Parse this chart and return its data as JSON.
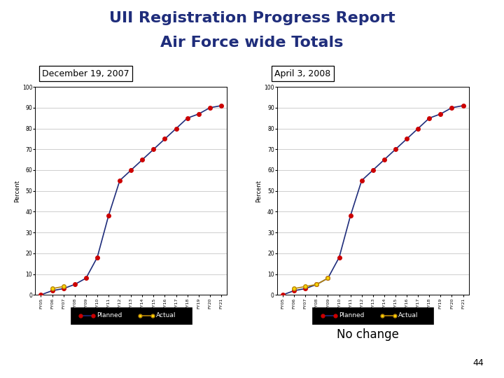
{
  "title_line1": "UII Registration Progress Report",
  "title_line2": "Air Force wide Totals",
  "title_color": "#1F2D7B",
  "title_fontsize": 16,
  "subtitle_left": "December 19, 2007",
  "subtitle_right": "April 3, 2008",
  "subtitle_fontsize": 9,
  "note": "No change",
  "note_fontsize": 12,
  "page_number": "44",
  "background_color": "#ffffff",
  "bar_color": "#1F2D7B",
  "categories": [
    "FY05",
    "FY06",
    "FY07",
    "FY08",
    "FY09",
    "FY10",
    "FY11",
    "FY12",
    "FY13",
    "FY14",
    "FY15",
    "FY16",
    "FY17",
    "FY18",
    "FY19",
    "FY20",
    "FY21"
  ],
  "planned_left": [
    0,
    2,
    3,
    5,
    8,
    18,
    38,
    55,
    60,
    65,
    70,
    75,
    80,
    85,
    87,
    90,
    91
  ],
  "actual_left": [
    null,
    3,
    4,
    null,
    null,
    null,
    null,
    null,
    null,
    null,
    null,
    null,
    null,
    null,
    null,
    null,
    null
  ],
  "planned_right": [
    0,
    2,
    3,
    5,
    8,
    18,
    38,
    55,
    60,
    65,
    70,
    75,
    80,
    85,
    87,
    90,
    91
  ],
  "actual_right": [
    null,
    3,
    4,
    5,
    8,
    null,
    null,
    null,
    null,
    null,
    null,
    null,
    null,
    null,
    null,
    null,
    null
  ],
  "ylabel": "Percent",
  "ylim": [
    0,
    100
  ],
  "yticks": [
    0,
    10,
    20,
    30,
    40,
    50,
    60,
    70,
    80,
    90,
    100
  ],
  "planned_color": "#CC0000",
  "planned_line_color": "#1F2D7B",
  "actual_color": "#FFD700",
  "actual_line_color": "#B8860B",
  "marker_size": 4,
  "line_width": 1.2
}
